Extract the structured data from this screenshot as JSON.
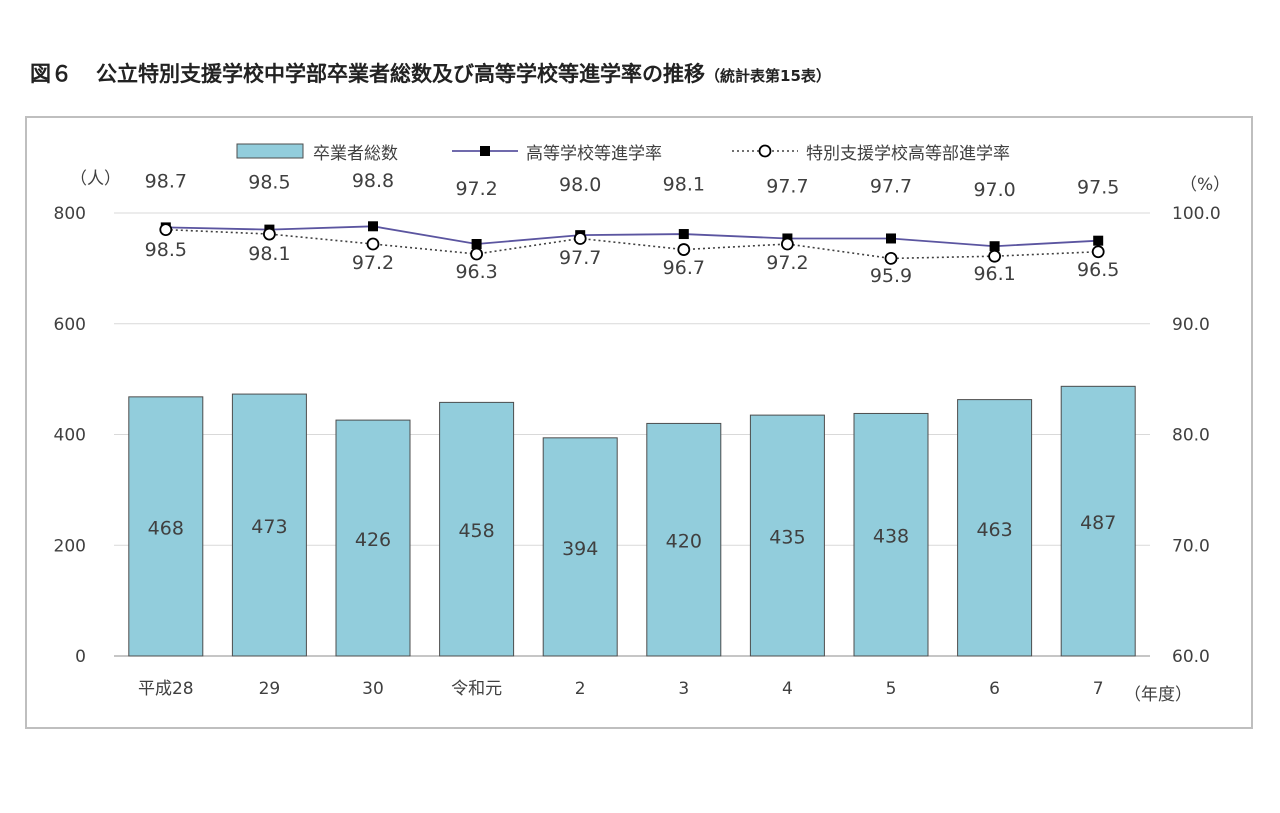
{
  "title": {
    "figure_number": "図６",
    "main": "公立特別支援学校中学部卒業者総数及び高等学校等進学率の推移",
    "note": "（統計表第15表）"
  },
  "colors": {
    "bar_fill": "#92cddc",
    "bar_stroke": "#4d4d4d",
    "line_high_school": "#5b55a0",
    "line_special_school": "#404040",
    "marker_square": "#000000",
    "marker_circle_fill": "#ffffff"
  },
  "chart_data": {
    "type": "bar",
    "categories": [
      "平成28",
      "29",
      "30",
      "令和元",
      "2",
      "3",
      "4",
      "5",
      "6",
      "7"
    ],
    "x_unit_label": "（年度）",
    "left_axis": {
      "unit_label": "（人）",
      "ylim": [
        0,
        800
      ],
      "ticks": [
        "0",
        "200",
        "400",
        "600",
        "800"
      ]
    },
    "right_axis": {
      "unit_label": "（%）",
      "ylim": [
        60.0,
        100.0
      ],
      "ticks": [
        "60.0",
        "70.0",
        "80.0",
        "90.0",
        "100.0"
      ]
    },
    "legend_position": "top-center",
    "series": [
      {
        "name": "卒業者総数",
        "kind": "bar",
        "axis": "left",
        "values": [
          468,
          473,
          426,
          458,
          394,
          420,
          435,
          438,
          463,
          487
        ],
        "labels": [
          "468",
          "473",
          "426",
          "458",
          "394",
          "420",
          "435",
          "438",
          "463",
          "487"
        ]
      },
      {
        "name": "高等学校等進学率",
        "kind": "line",
        "marker": "square",
        "axis": "right",
        "values": [
          98.7,
          98.5,
          98.8,
          97.2,
          98.0,
          98.1,
          97.7,
          97.7,
          97.0,
          97.5
        ],
        "labels": [
          "98.7",
          "98.5",
          "98.8",
          "97.2",
          "98.0",
          "98.1",
          "97.7",
          "97.7",
          "97.0",
          "97.5"
        ]
      },
      {
        "name": "特別支援学校高等部進学率",
        "kind": "line",
        "marker": "circle",
        "dashed": true,
        "axis": "right",
        "values": [
          98.5,
          98.1,
          97.2,
          96.3,
          97.7,
          96.7,
          97.2,
          95.9,
          96.1,
          96.5
        ],
        "labels": [
          "98.5",
          "98.1",
          "97.2",
          "96.3",
          "97.7",
          "96.7",
          "97.2",
          "95.9",
          "96.1",
          "96.5"
        ]
      }
    ]
  }
}
